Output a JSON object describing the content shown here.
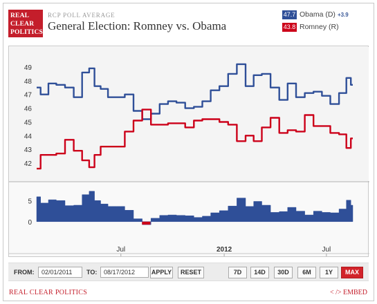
{
  "header": {
    "logo_lines": [
      "REAL",
      "CLEAR",
      "POLITICS"
    ],
    "kicker": "RCP POLL AVERAGE",
    "title": "General Election: Romney vs. Obama"
  },
  "legend": [
    {
      "value": "47.7",
      "name": "Obama (D)",
      "spread": "+3.9",
      "color": "#2f4f98"
    },
    {
      "value": "43.8",
      "name": "Romney (R)",
      "spread": "",
      "color": "#cc0019"
    }
  ],
  "controls": {
    "from_label": "FROM:",
    "from_value": "02/01/2011",
    "to_label": "TO:",
    "to_value": "08/17/2012",
    "apply_label": "APPLY",
    "reset_label": "RESET",
    "ranges": [
      "7D",
      "14D",
      "30D",
      "6M",
      "1Y",
      "MAX"
    ],
    "active_range": "MAX"
  },
  "footer": {
    "brand": "REAL CLEAR POLITICS",
    "embed": "< /> EMBED"
  },
  "chart_data": [
    {
      "type": "line",
      "x_ticks": [
        "Jul",
        "2012",
        "Jul"
      ],
      "ylim": [
        41,
        49.8
      ],
      "y_ticks": [
        42,
        43,
        44,
        45,
        46,
        47,
        48,
        49
      ],
      "series": [
        {
          "name": "Obama (D)",
          "color": "#2f4f98",
          "x": [
            "2011-02-01",
            "2011-02-15",
            "2011-03-01",
            "2011-03-15",
            "2011-04-01",
            "2011-04-15",
            "2011-05-01",
            "2011-05-10",
            "2011-05-20",
            "2011-06-01",
            "2011-06-15",
            "2011-07-01",
            "2011-07-15",
            "2011-08-01",
            "2011-08-15",
            "2011-09-01",
            "2011-09-15",
            "2011-10-01",
            "2011-10-15",
            "2011-11-01",
            "2011-11-15",
            "2011-12-01",
            "2011-12-15",
            "2012-01-01",
            "2012-01-15",
            "2012-02-01",
            "2012-02-15",
            "2012-03-01",
            "2012-03-15",
            "2012-04-01",
            "2012-04-15",
            "2012-05-01",
            "2012-05-15",
            "2012-06-01",
            "2012-06-15",
            "2012-07-01",
            "2012-07-15",
            "2012-08-01",
            "2012-08-10",
            "2012-08-17"
          ],
          "values": [
            47.5,
            47.0,
            47.8,
            47.7,
            47.5,
            46.8,
            48.6,
            48.9,
            47.6,
            47.4,
            46.8,
            46.8,
            47.0,
            45.8,
            45.2,
            45.6,
            46.3,
            46.5,
            46.4,
            46.0,
            46.1,
            46.5,
            47.3,
            47.6,
            48.5,
            49.2,
            47.6,
            48.4,
            48.5,
            47.5,
            46.6,
            47.8,
            46.8,
            47.1,
            47.2,
            46.9,
            46.3,
            47.1,
            48.2,
            47.7
          ]
        },
        {
          "name": "Romney (R)",
          "color": "#cc0019",
          "x": [
            "2011-02-01",
            "2011-02-15",
            "2011-03-01",
            "2011-03-15",
            "2011-04-01",
            "2011-04-15",
            "2011-05-01",
            "2011-05-10",
            "2011-05-20",
            "2011-06-01",
            "2011-06-15",
            "2011-07-01",
            "2011-07-15",
            "2011-08-01",
            "2011-08-15",
            "2011-09-01",
            "2011-09-15",
            "2011-10-01",
            "2011-10-15",
            "2011-11-01",
            "2011-11-15",
            "2011-12-01",
            "2011-12-15",
            "2012-01-01",
            "2012-01-15",
            "2012-02-01",
            "2012-02-15",
            "2012-03-01",
            "2012-03-15",
            "2012-04-01",
            "2012-04-15",
            "2012-05-01",
            "2012-05-15",
            "2012-06-01",
            "2012-06-15",
            "2012-07-01",
            "2012-07-15",
            "2012-08-01",
            "2012-08-10",
            "2012-08-17"
          ],
          "values": [
            41.6,
            42.6,
            42.6,
            42.7,
            43.7,
            42.9,
            42.2,
            41.7,
            42.6,
            43.2,
            43.2,
            43.2,
            44.3,
            45.1,
            45.9,
            44.8,
            44.8,
            44.9,
            44.9,
            44.6,
            45.1,
            45.2,
            45.2,
            45.0,
            44.8,
            43.6,
            44.0,
            43.6,
            44.6,
            45.3,
            44.2,
            44.4,
            44.3,
            45.5,
            44.7,
            44.7,
            44.2,
            44.1,
            43.1,
            43.8
          ]
        }
      ]
    },
    {
      "type": "area",
      "name": "Spread",
      "color": "#2f4f98",
      "ylim": [
        -1.5,
        7.5
      ],
      "y_ticks": [
        0,
        5
      ],
      "x": [
        "2011-02-01",
        "2011-02-15",
        "2011-03-01",
        "2011-03-15",
        "2011-04-01",
        "2011-04-15",
        "2011-05-01",
        "2011-05-10",
        "2011-05-20",
        "2011-06-01",
        "2011-06-15",
        "2011-07-01",
        "2011-07-15",
        "2011-08-01",
        "2011-08-15",
        "2011-09-01",
        "2011-09-15",
        "2011-10-01",
        "2011-10-15",
        "2011-11-01",
        "2011-11-15",
        "2011-12-01",
        "2011-12-15",
        "2012-01-01",
        "2012-01-15",
        "2012-02-01",
        "2012-02-15",
        "2012-03-01",
        "2012-03-15",
        "2012-04-01",
        "2012-04-15",
        "2012-05-01",
        "2012-05-15",
        "2012-06-01",
        "2012-06-15",
        "2012-07-01",
        "2012-07-15",
        "2012-08-01",
        "2012-08-10",
        "2012-08-17"
      ],
      "values": [
        5.9,
        4.4,
        5.2,
        5.0,
        3.8,
        3.9,
        6.4,
        7.2,
        5.0,
        4.2,
        3.6,
        3.6,
        2.7,
        0.7,
        -0.7,
        0.8,
        1.5,
        1.6,
        1.5,
        1.4,
        1.0,
        1.3,
        2.1,
        2.6,
        3.7,
        5.6,
        3.6,
        4.8,
        3.9,
        2.2,
        2.4,
        3.4,
        2.5,
        1.6,
        2.5,
        2.2,
        2.1,
        3.0,
        5.1,
        3.9
      ]
    }
  ]
}
